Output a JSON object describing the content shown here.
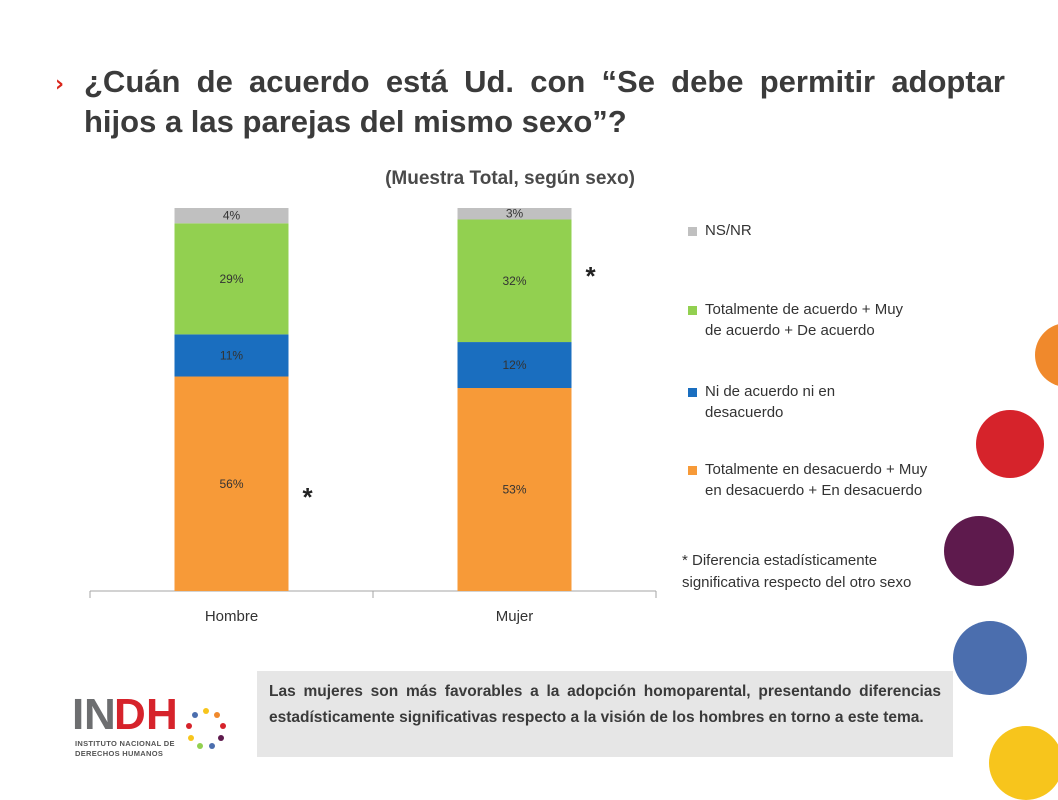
{
  "title": "¿Cuán de acuerdo está Ud. con “Se debe permitir adoptar hijos a las parejas del mismo sexo”?",
  "title_bullet": "›",
  "chart_data": {
    "type": "bar",
    "stacked": true,
    "subtitle": "(Muestra Total, según sexo)",
    "categories": [
      "Hombre",
      "Mujer"
    ],
    "series": [
      {
        "name": "Totalmente en desacuerdo + Muy en desacuerdo + En desacuerdo",
        "color": "#f79a38",
        "values": [
          56,
          53
        ],
        "labels": [
          "56%",
          "53%"
        ]
      },
      {
        "name": "Ni de acuerdo ni en desacuerdo",
        "color": "#1a6ebf",
        "values": [
          11,
          12
        ],
        "labels": [
          "11%",
          "12%"
        ]
      },
      {
        "name": "Totalmente de acuerdo + Muy de acuerdo + De acuerdo",
        "color": "#92d050",
        "values": [
          29,
          32
        ],
        "labels": [
          "29%",
          "32%"
        ]
      },
      {
        "name": "NS/NR",
        "color": "#c0c0c0",
        "values": [
          4,
          3
        ],
        "labels": [
          "4%",
          "3%"
        ]
      }
    ],
    "legend_order": [
      "NS/NR",
      "Totalmente de acuerdo + Muy de acuerdo + De acuerdo",
      "Ni de acuerdo ni en desacuerdo",
      "Totalmente en desacuerdo + Muy en desacuerdo + En desacuerdo"
    ],
    "legend_position": "right",
    "significance_marks": [
      {
        "category": "Hombre",
        "series": "Totalmente en desacuerdo + Muy en desacuerdo + En desacuerdo",
        "mark": "*"
      },
      {
        "category": "Mujer",
        "series": "Totalmente de acuerdo + Muy de acuerdo + De acuerdo",
        "mark": "*"
      }
    ],
    "ylim": [
      0,
      100
    ],
    "grid": false
  },
  "significance_note": "* Diferencia estadísticamente significativa respecto del otro sexo",
  "footnote": "Las mujeres son más favorables a la adopción homoparental, presentando diferencias estadísticamente significativas respecto a la visión de los hombres en torno a este tema.",
  "logo": {
    "letters": [
      "I",
      "N",
      "D",
      "H"
    ],
    "line1": "INSTITUTO NACIONAL DE",
    "line2": "DERECHOS HUMANOS"
  },
  "colors": {
    "accent_red": "#d9261c",
    "deco_orange": "#f0892c",
    "deco_red": "#d6232b",
    "deco_purple": "#5e1a4d",
    "deco_blue": "#4b6eae",
    "deco_yellow": "#f7c51c",
    "logo_gray": "#6d6e70",
    "logo_red": "#d6232b"
  }
}
